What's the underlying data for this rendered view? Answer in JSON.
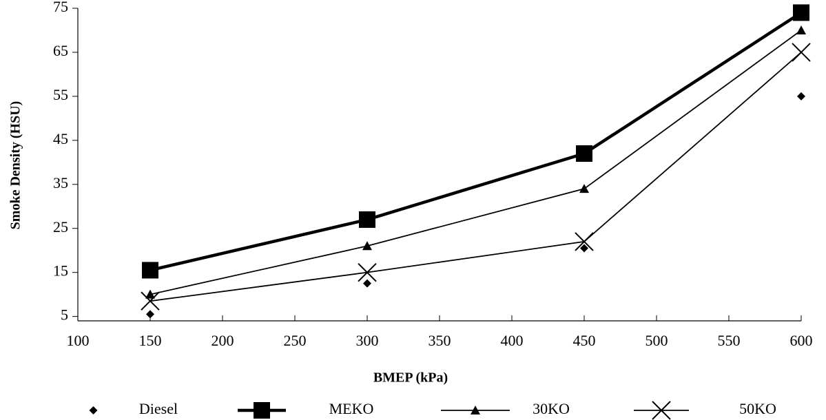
{
  "chart_data": {
    "type": "line",
    "x_label": "BMEP (kPa)",
    "y_label": "Smoke Density (HSU)",
    "x": [
      150,
      300,
      450,
      600
    ],
    "xlim": [
      100,
      600
    ],
    "xticks": [
      100,
      150,
      200,
      250,
      300,
      350,
      400,
      450,
      500,
      550,
      600
    ],
    "ylim": [
      4,
      75
    ],
    "yticks": [
      5,
      15,
      25,
      35,
      45,
      55,
      65,
      75
    ],
    "series": [
      {
        "name": "Diesel",
        "color": "#000000",
        "marker": "diamond",
        "line_width": 0,
        "values": [
          5.5,
          12.5,
          20.5,
          55
        ]
      },
      {
        "name": "MEKO",
        "color": "#000000",
        "marker": "square",
        "line_width": 4.5,
        "values": [
          15.5,
          27,
          42,
          74
        ]
      },
      {
        "name": "30KO",
        "color": "#000000",
        "marker": "triangle",
        "line_width": 1.8,
        "values": [
          10,
          21,
          34,
          70
        ]
      },
      {
        "name": "50KO",
        "color": "#000000",
        "marker": "x",
        "line_width": 1.8,
        "values": [
          8.5,
          15,
          22,
          65
        ]
      }
    ]
  }
}
